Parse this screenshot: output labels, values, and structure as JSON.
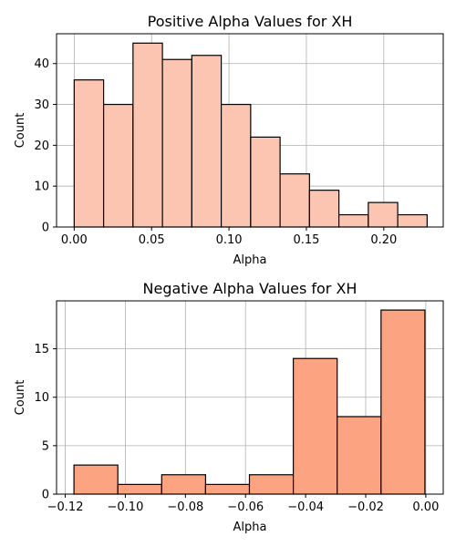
{
  "chart_data": [
    {
      "type": "histogram",
      "title": "Positive Alpha Values for XH",
      "xlabel": "Alpha",
      "ylabel": "Count",
      "xlim": [
        -0.0114,
        0.2384
      ],
      "ylim": [
        0,
        47.3
      ],
      "xticks": [
        0.0,
        0.05,
        0.1,
        0.15,
        0.2
      ],
      "xtick_labels": [
        "0.00",
        "0.05",
        "0.10",
        "0.15",
        "0.20"
      ],
      "yticks": [
        0,
        10,
        20,
        30,
        40
      ],
      "grid": true,
      "color": "#fcc5b1",
      "bins": [
        {
          "x0": 0.0,
          "x1": 0.019,
          "value": 36
        },
        {
          "x0": 0.019,
          "x1": 0.038,
          "value": 30
        },
        {
          "x0": 0.038,
          "x1": 0.057,
          "value": 45
        },
        {
          "x0": 0.057,
          "x1": 0.076,
          "value": 41
        },
        {
          "x0": 0.076,
          "x1": 0.095,
          "value": 42
        },
        {
          "x0": 0.095,
          "x1": 0.114,
          "value": 30
        },
        {
          "x0": 0.114,
          "x1": 0.133,
          "value": 22
        },
        {
          "x0": 0.133,
          "x1": 0.152,
          "value": 13
        },
        {
          "x0": 0.152,
          "x1": 0.171,
          "value": 9
        },
        {
          "x0": 0.171,
          "x1": 0.19,
          "value": 3
        },
        {
          "x0": 0.19,
          "x1": 0.209,
          "value": 6
        },
        {
          "x0": 0.209,
          "x1": 0.228,
          "value": 3
        }
      ]
    },
    {
      "type": "histogram",
      "title": "Negative Alpha Values for XH",
      "xlabel": "Alpha",
      "ylabel": "Count",
      "xlim": [
        -0.1229,
        0.0058
      ],
      "ylim": [
        0,
        19.95
      ],
      "xticks": [
        -0.12,
        -0.1,
        -0.08,
        -0.06,
        -0.04,
        -0.02,
        0.0
      ],
      "xtick_labels": [
        "−0.12",
        "−0.10",
        "−0.08",
        "−0.06",
        "−0.04",
        "−0.02",
        "0.00"
      ],
      "yticks": [
        0,
        5,
        10,
        15
      ],
      "grid": true,
      "color": "#fca482",
      "bins": [
        {
          "x0": -0.1171,
          "x1": -0.1025,
          "value": 3
        },
        {
          "x0": -0.1025,
          "x1": -0.0879,
          "value": 1
        },
        {
          "x0": -0.0879,
          "x1": -0.0733,
          "value": 2
        },
        {
          "x0": -0.0733,
          "x1": -0.0587,
          "value": 1
        },
        {
          "x0": -0.0587,
          "x1": -0.0441,
          "value": 2
        },
        {
          "x0": -0.0441,
          "x1": -0.0295,
          "value": 14
        },
        {
          "x0": -0.0295,
          "x1": -0.0149,
          "value": 8
        },
        {
          "x0": -0.0149,
          "x1": -0.0003,
          "value": 19
        }
      ]
    }
  ]
}
